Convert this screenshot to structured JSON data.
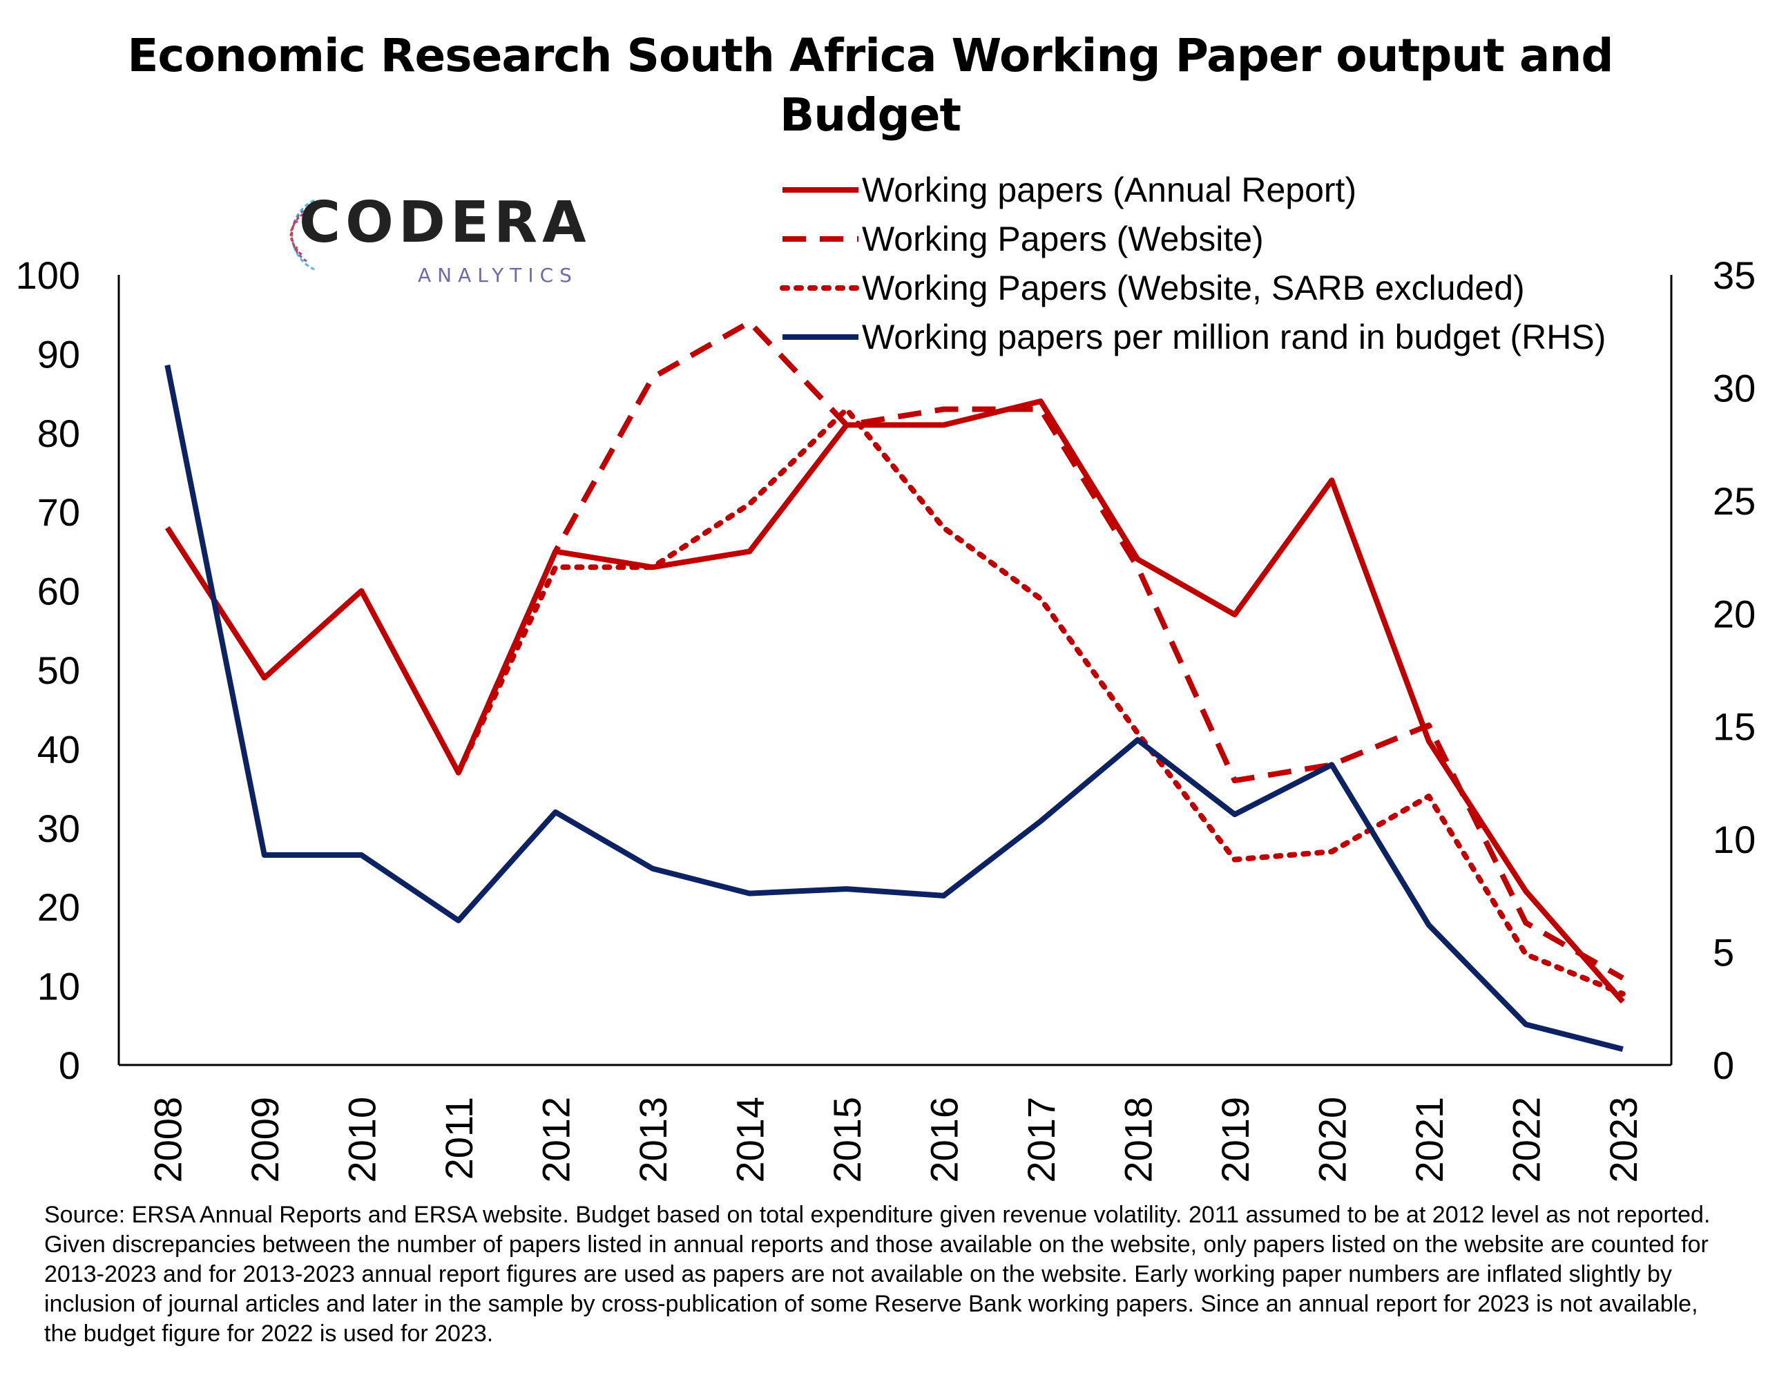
{
  "title": "Economic Research South Africa Working Paper output and Budget",
  "logo": {
    "word": "CODERA",
    "sub": "ANALYTICS"
  },
  "source_note": "Source: ERSA Annual Reports and ERSA website.  Budget based on total expenditure given revenue volatility. 2011 assumed to be at 2012 level as not reported. Given discrepancies between the number of papers listed in annual reports and those available on the website, only papers listed on the website are counted for 2013-2023 and for 2013-2023 annual report figures are used as papers are not available on the website. Early working paper numbers are inflated slightly by inclusion of journal articles and later in the sample by cross-publication of some Reserve Bank working papers. Since an annual report for 2023 is not available, the budget figure for 2022 is used for 2023.",
  "colors": {
    "red": "#c00000",
    "navy": "#0d2262"
  },
  "chart_data": {
    "type": "line",
    "categories": [
      "2008",
      "2009",
      "2010",
      "2011",
      "2012",
      "2013",
      "2014",
      "2015",
      "2016",
      "2017",
      "2018",
      "2019",
      "2020",
      "2021",
      "2022",
      "2023"
    ],
    "y_left": {
      "range": [
        0,
        100
      ],
      "ticks": [
        0,
        10,
        20,
        30,
        40,
        50,
        60,
        70,
        80,
        90,
        100
      ]
    },
    "y_right": {
      "range": [
        0,
        35
      ],
      "ticks": [
        0,
        5,
        10,
        15,
        20,
        25,
        30,
        35
      ]
    },
    "legend_position": "top-right",
    "grid": false,
    "series": [
      {
        "name": "Working papers (Annual Report)",
        "axis": "left",
        "style": "solid",
        "color": "#c00000",
        "values": [
          68,
          49,
          60,
          37,
          65,
          63,
          65,
          81,
          81,
          84,
          64,
          57,
          74,
          41,
          22,
          8
        ]
      },
      {
        "name": "Working Papers (Website)",
        "axis": "left",
        "style": "dashed",
        "color": "#c00000",
        "values": [
          null,
          null,
          null,
          37,
          65,
          87,
          94,
          81,
          83,
          83,
          63,
          36,
          38,
          43,
          18,
          11
        ]
      },
      {
        "name": "Working Papers (Website, SARB excluded)",
        "axis": "left",
        "style": "dotted",
        "color": "#c00000",
        "values": [
          null,
          null,
          null,
          37,
          63,
          63,
          71,
          83,
          68,
          59,
          42,
          26,
          27,
          34,
          14,
          9
        ]
      },
      {
        "name": "Working papers per million rand in budget (RHS)",
        "axis": "right",
        "style": "solid",
        "color": "#0d2262",
        "values": [
          31.0,
          9.3,
          9.3,
          6.4,
          11.2,
          8.7,
          7.6,
          7.8,
          7.5,
          10.8,
          14.4,
          11.1,
          13.3,
          6.2,
          1.8,
          0.7
        ]
      }
    ]
  }
}
